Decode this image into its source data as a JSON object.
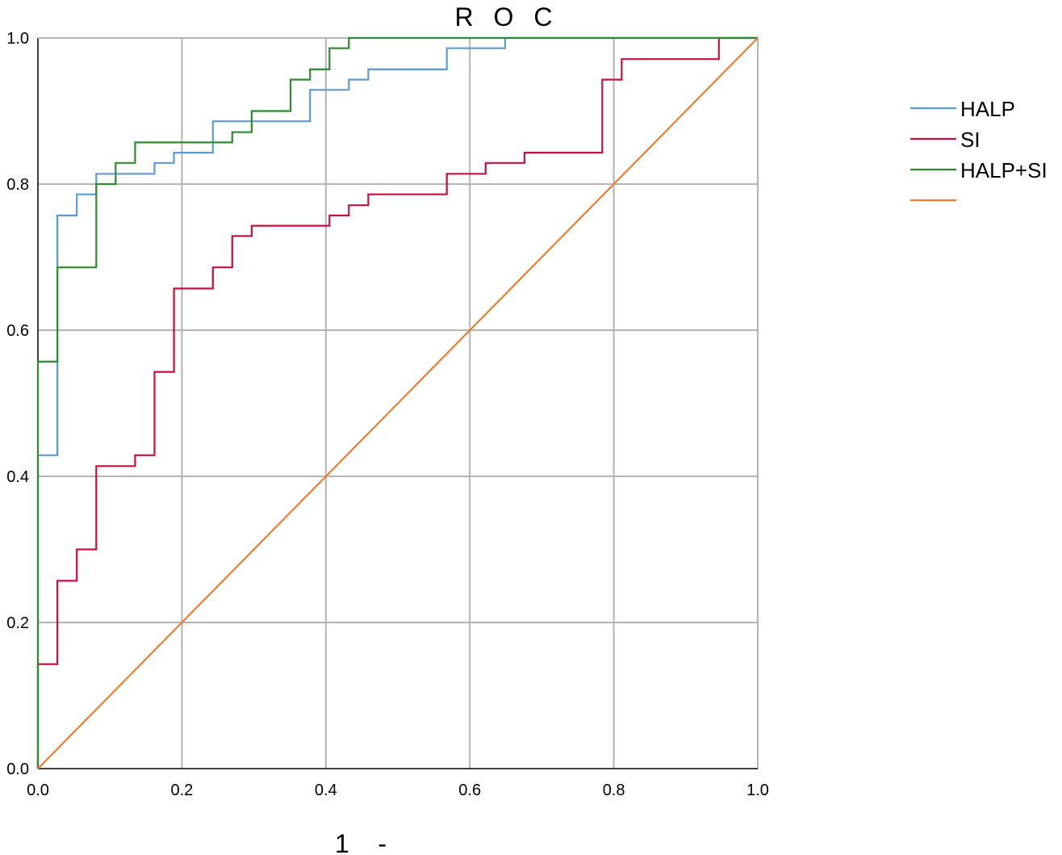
{
  "chart_data": {
    "type": "line",
    "title": "R O C",
    "xlabel": "1    -",
    "ylabel": "",
    "xlim": [
      0,
      1
    ],
    "ylim": [
      0,
      1
    ],
    "x_ticks": [
      "0.0",
      "0.2",
      "0.4",
      "0.6",
      "0.8",
      "1.0"
    ],
    "y_ticks": [
      "0.0",
      "0.2",
      "0.4",
      "0.6",
      "0.8",
      "1.0"
    ],
    "grid": true,
    "legend_position": "right",
    "series": [
      {
        "name": "HALP",
        "color": "#5b9bd5",
        "points": [
          [
            0,
            0
          ],
          [
            0,
            0.429
          ],
          [
            0.027,
            0.429
          ],
          [
            0.027,
            0.757
          ],
          [
            0.054,
            0.757
          ],
          [
            0.054,
            0.786
          ],
          [
            0.081,
            0.786
          ],
          [
            0.081,
            0.814
          ],
          [
            0.162,
            0.814
          ],
          [
            0.162,
            0.829
          ],
          [
            0.189,
            0.829
          ],
          [
            0.189,
            0.843
          ],
          [
            0.243,
            0.843
          ],
          [
            0.243,
            0.886
          ],
          [
            0.378,
            0.886
          ],
          [
            0.378,
            0.929
          ],
          [
            0.432,
            0.929
          ],
          [
            0.432,
            0.943
          ],
          [
            0.459,
            0.943
          ],
          [
            0.459,
            0.957
          ],
          [
            0.568,
            0.957
          ],
          [
            0.568,
            0.986
          ],
          [
            0.649,
            0.986
          ],
          [
            0.649,
            1.0
          ],
          [
            1.0,
            1.0
          ]
        ]
      },
      {
        "name": "SI",
        "color": "#c8103e",
        "points": [
          [
            0,
            0
          ],
          [
            0,
            0.143
          ],
          [
            0.027,
            0.143
          ],
          [
            0.027,
            0.257
          ],
          [
            0.054,
            0.257
          ],
          [
            0.054,
            0.3
          ],
          [
            0.081,
            0.3
          ],
          [
            0.081,
            0.414
          ],
          [
            0.135,
            0.414
          ],
          [
            0.135,
            0.429
          ],
          [
            0.162,
            0.429
          ],
          [
            0.162,
            0.543
          ],
          [
            0.189,
            0.543
          ],
          [
            0.189,
            0.657
          ],
          [
            0.243,
            0.657
          ],
          [
            0.243,
            0.686
          ],
          [
            0.27,
            0.686
          ],
          [
            0.27,
            0.729
          ],
          [
            0.297,
            0.729
          ],
          [
            0.297,
            0.743
          ],
          [
            0.405,
            0.743
          ],
          [
            0.405,
            0.757
          ],
          [
            0.432,
            0.757
          ],
          [
            0.432,
            0.771
          ],
          [
            0.459,
            0.771
          ],
          [
            0.459,
            0.786
          ],
          [
            0.568,
            0.786
          ],
          [
            0.568,
            0.814
          ],
          [
            0.622,
            0.814
          ],
          [
            0.622,
            0.829
          ],
          [
            0.676,
            0.829
          ],
          [
            0.676,
            0.843
          ],
          [
            0.784,
            0.843
          ],
          [
            0.784,
            0.943
          ],
          [
            0.811,
            0.943
          ],
          [
            0.811,
            0.971
          ],
          [
            0.946,
            0.971
          ],
          [
            0.946,
            1.0
          ],
          [
            1.0,
            1.0
          ]
        ]
      },
      {
        "name": "HALP+SI",
        "color": "#2e8b2e",
        "points": [
          [
            0,
            0
          ],
          [
            0,
            0.557
          ],
          [
            0.027,
            0.557
          ],
          [
            0.027,
            0.686
          ],
          [
            0.081,
            0.686
          ],
          [
            0.081,
            0.8
          ],
          [
            0.108,
            0.8
          ],
          [
            0.108,
            0.829
          ],
          [
            0.135,
            0.829
          ],
          [
            0.135,
            0.857
          ],
          [
            0.27,
            0.857
          ],
          [
            0.27,
            0.871
          ],
          [
            0.297,
            0.871
          ],
          [
            0.297,
            0.9
          ],
          [
            0.351,
            0.9
          ],
          [
            0.351,
            0.943
          ],
          [
            0.378,
            0.943
          ],
          [
            0.378,
            0.957
          ],
          [
            0.405,
            0.957
          ],
          [
            0.405,
            0.986
          ],
          [
            0.432,
            0.986
          ],
          [
            0.432,
            1.0
          ],
          [
            1.0,
            1.0
          ]
        ]
      },
      {
        "name": "",
        "color": "#ed7d31",
        "points": [
          [
            0,
            0
          ],
          [
            1,
            1
          ]
        ]
      }
    ]
  }
}
